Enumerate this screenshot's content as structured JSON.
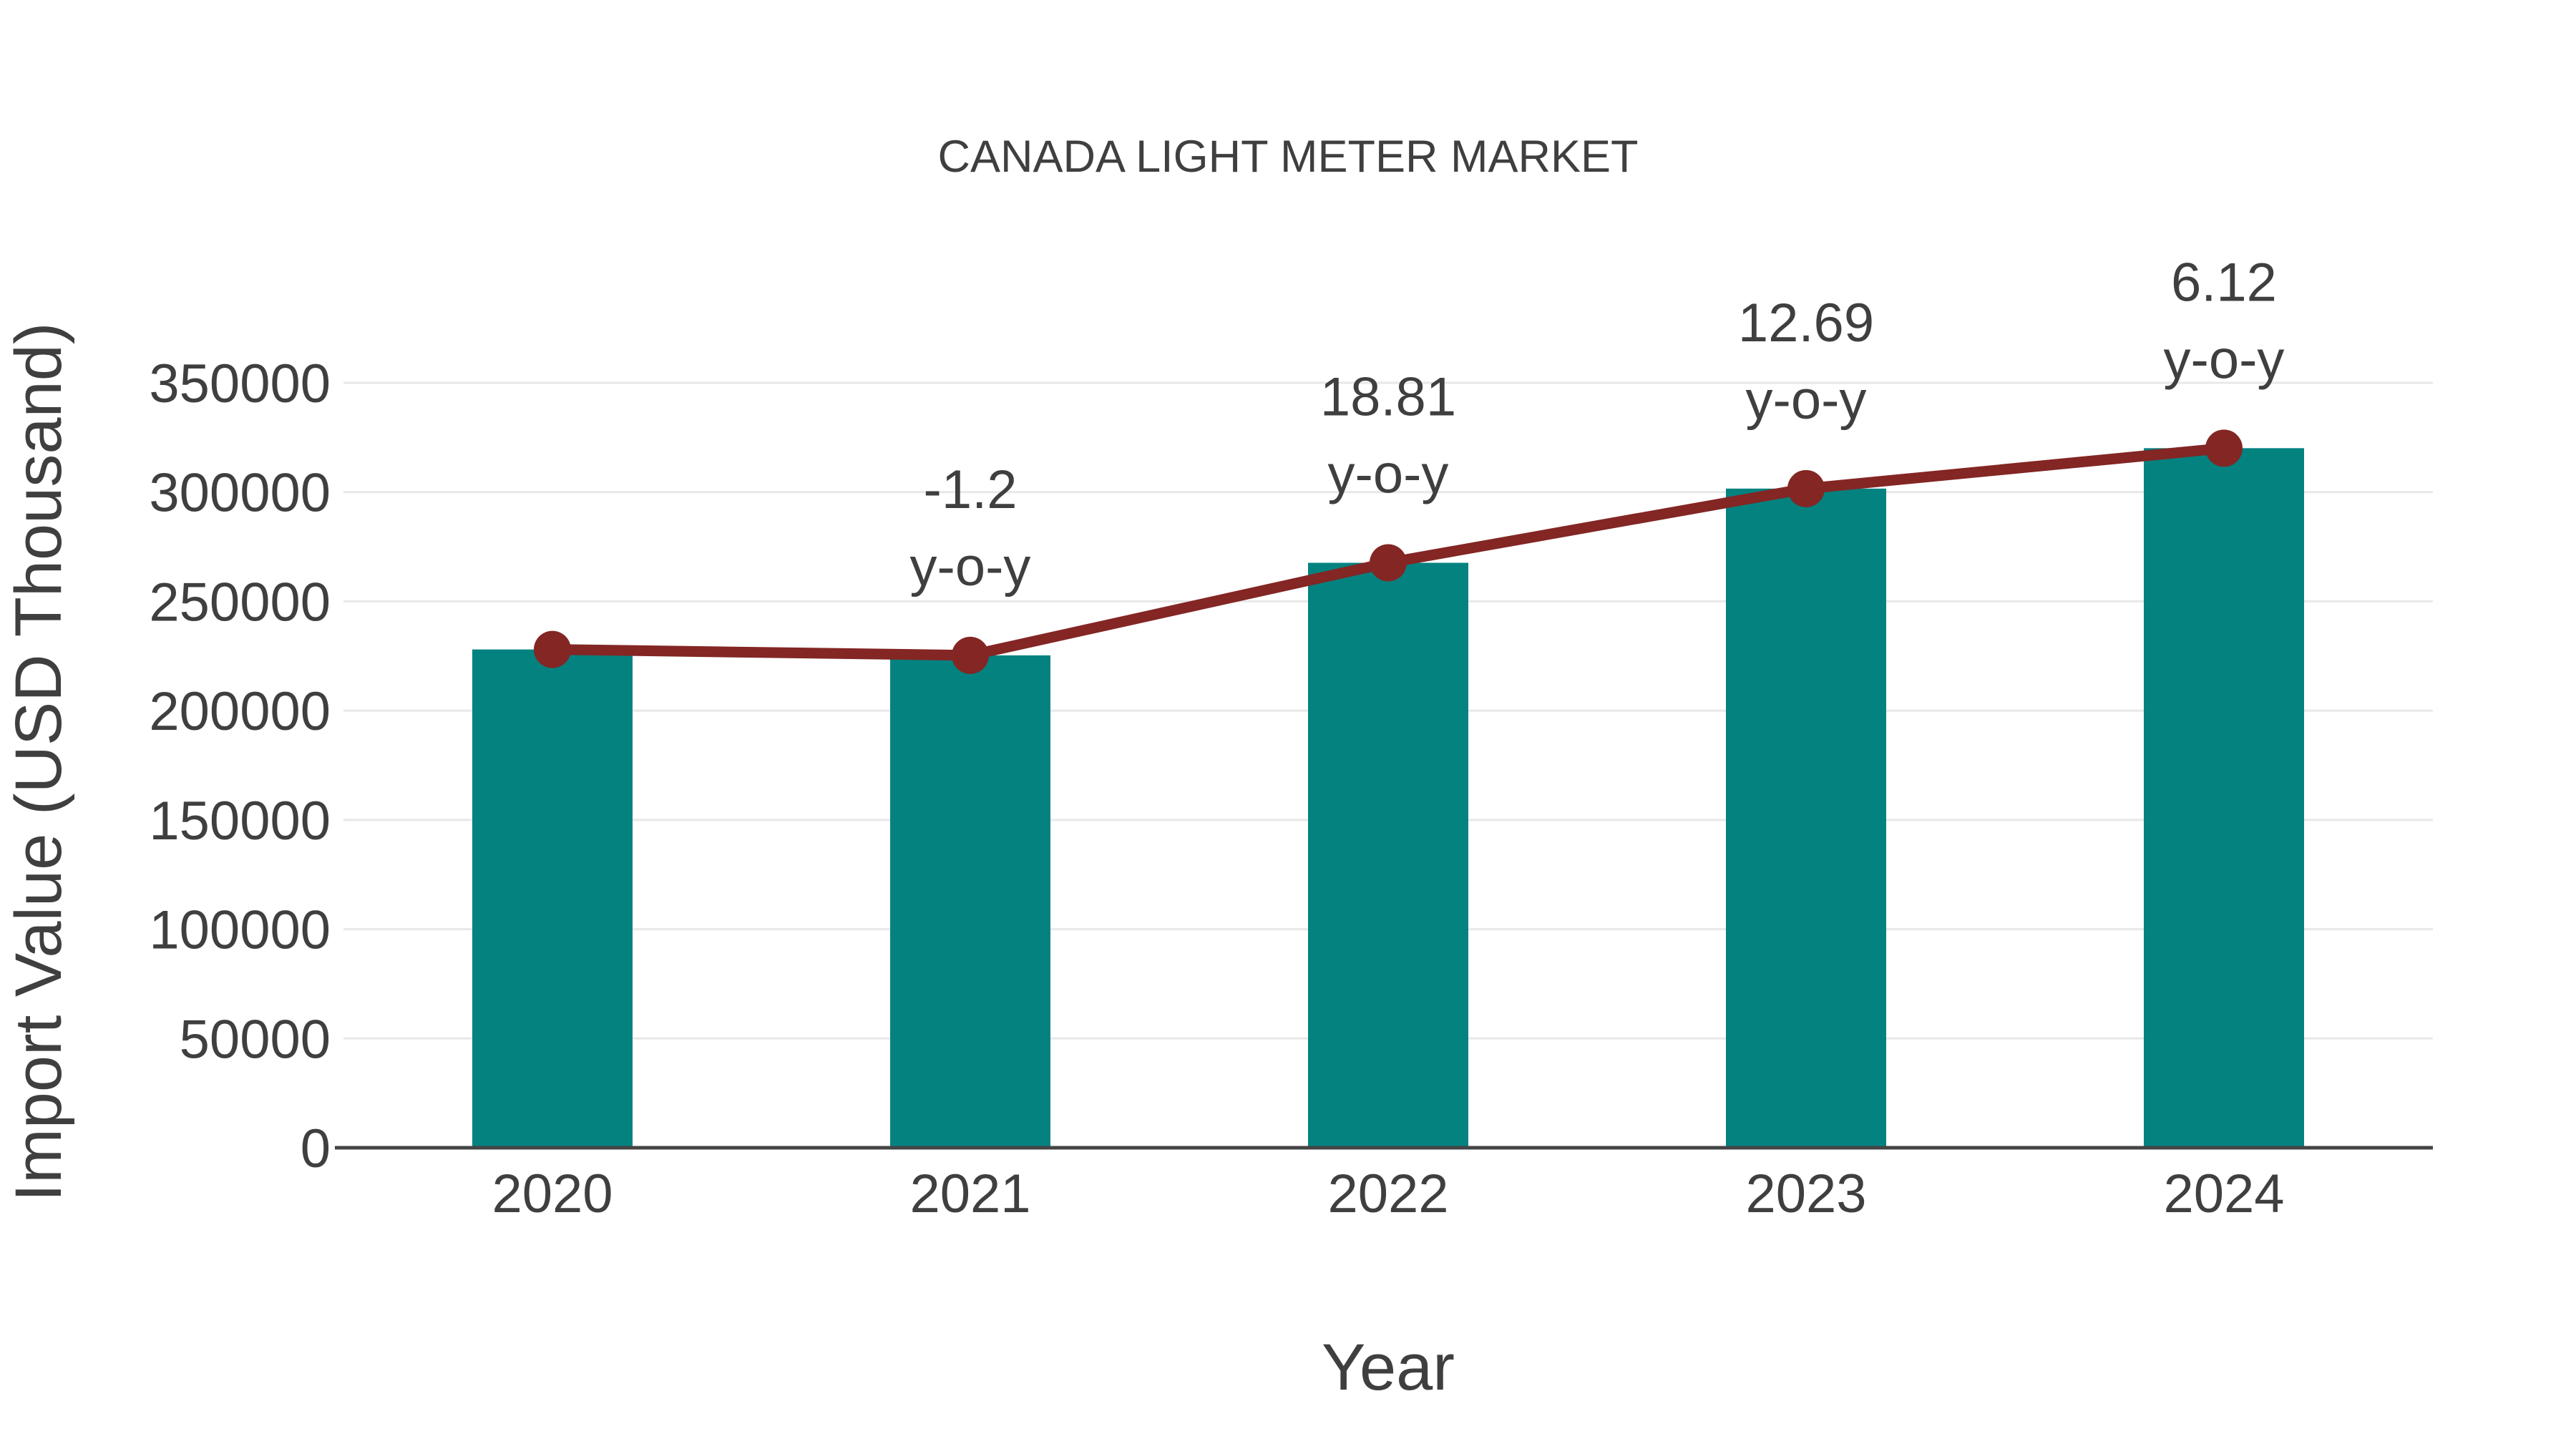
{
  "page": {
    "background_color": "#FFFFFF"
  },
  "chart_data": {
    "type": "combo-bar-line",
    "title": "CANADA LIGHT METER MARKET",
    "xlabel": "Year",
    "ylabel": "Import Value (USD Thousand)",
    "categories": [
      "2020",
      "2021",
      "2022",
      "2023",
      "2024"
    ],
    "bar_series": {
      "name": "Import Value (USD Thousand)",
      "values": [
        228000,
        225300,
        267650,
        301600,
        320100
      ],
      "color": "#048280"
    },
    "line_series": {
      "name": "y-o-y growth",
      "values": [
        228000,
        225300,
        267650,
        301600,
        320100
      ],
      "color": "#832624",
      "marker_color": "#832624"
    },
    "annotations": [
      {
        "category": "2021",
        "line1": "-1.2",
        "line2": "y-o-y"
      },
      {
        "category": "2022",
        "line1": "18.81",
        "line2": "y-o-y"
      },
      {
        "category": "2023",
        "line1": "12.69",
        "line2": "y-o-y"
      },
      {
        "category": "2024",
        "line1": "6.12",
        "line2": "y-o-y"
      }
    ],
    "yticks": [
      0,
      50000,
      100000,
      150000,
      200000,
      250000,
      300000,
      350000
    ],
    "ylim": [
      0,
      350000
    ],
    "grid": true,
    "legend_position": "none",
    "text_color": "#3F3F3F",
    "grid_color": "#E8E8E8",
    "axis_color": "#444444"
  }
}
